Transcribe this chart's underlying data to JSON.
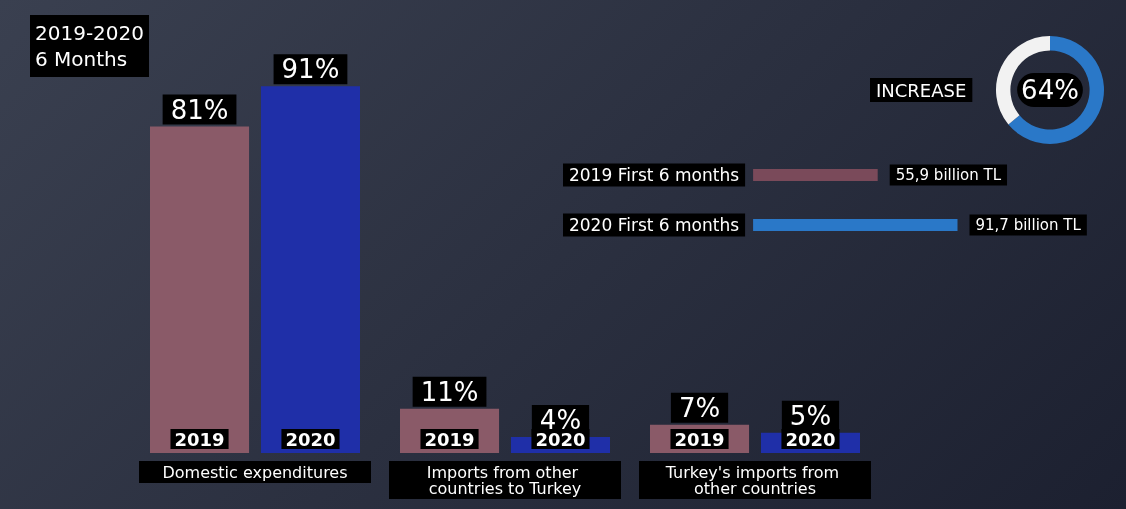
{
  "chart_data": [
    {
      "type": "bar",
      "title": "2019-2020\n6 Months",
      "categories": [
        "Domestic expenditures",
        "Imports from other countries to Turkey",
        "Turkey's imports from other countries"
      ],
      "series": [
        {
          "name": "2019",
          "color": "#8a5a68",
          "values": [
            81,
            11,
            7
          ],
          "value_labels": [
            "81%",
            "11%",
            "7%"
          ]
        },
        {
          "name": "2020",
          "color": "#1f2fa8",
          "values": [
            91,
            4,
            5
          ],
          "value_labels": [
            "91%",
            "4%",
            "5%"
          ]
        }
      ],
      "legend": false,
      "grid": false
    },
    {
      "type": "bar",
      "orientation": "horizontal",
      "categories": [
        "2019 First 6 months",
        "2020 First 6 months"
      ],
      "values": [
        55.9,
        91.7
      ],
      "colors": [
        "#7a4a5a",
        "#2a78c8"
      ],
      "value_labels": [
        "55,9 billion TL",
        "91,7 billion TL"
      ],
      "grid": false
    },
    {
      "type": "donut",
      "title": "INCREASE",
      "categories": [
        null,
        null
      ],
      "values": [
        64,
        36
      ],
      "colors": [
        "#2a78c8",
        "#f2f2f2"
      ],
      "value_labels": [
        "64%",
        null
      ]
    }
  ]
}
